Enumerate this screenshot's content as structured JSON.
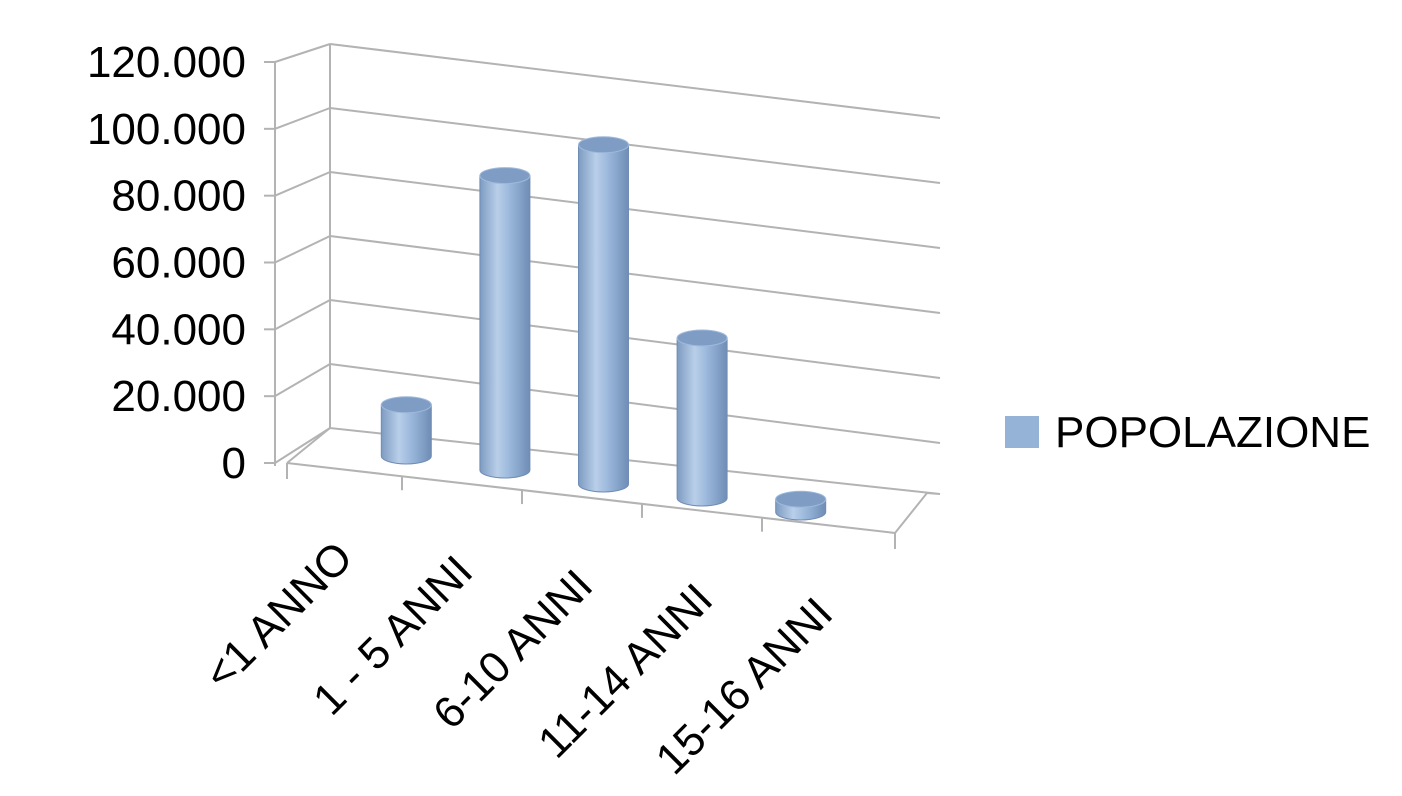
{
  "chart_data": {
    "type": "bar",
    "style": "3d-cylinder",
    "categories": [
      "<1 ANNO",
      "1 - 5 ANNI",
      "6-10 ANNI",
      "11-14 ANNI",
      "15-16 ANNI"
    ],
    "series": [
      {
        "name": "POPOLAZIONE",
        "values": [
          16000,
          92000,
          106000,
          50000,
          4000
        ],
        "color": "#95b3d7"
      }
    ],
    "ylim": [
      0,
      120000
    ],
    "yticks": [
      {
        "value": 0,
        "label": "0"
      },
      {
        "value": 20000,
        "label": "20.000"
      },
      {
        "value": 40000,
        "label": "40.000"
      },
      {
        "value": 60000,
        "label": "60.000"
      },
      {
        "value": 80000,
        "label": "80.000"
      },
      {
        "value": 100000,
        "label": "100.000"
      },
      {
        "value": 120000,
        "label": "120.000"
      }
    ],
    "grid": true,
    "legend_position": "right",
    "title": "",
    "xlabel": "",
    "ylabel": ""
  }
}
